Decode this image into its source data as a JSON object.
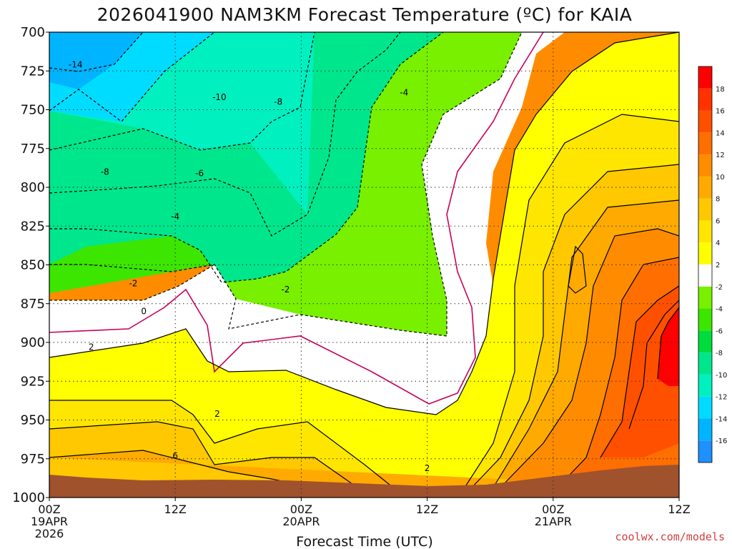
{
  "chart_data": {
    "type": "heatmap",
    "title": "2026041900 NAM3KM Forecast Temperature (ºC) for KAIA",
    "xlabel": "Forecast Time (UTC)",
    "ylabel": "",
    "credit": "coolwx.com/models",
    "y_axis": {
      "ticks": [
        "700",
        "725",
        "750",
        "775",
        "800",
        "825",
        "850",
        "875",
        "900",
        "925",
        "950",
        "975",
        "1000"
      ],
      "range": [
        700,
        1000
      ],
      "inverted": true
    },
    "x_axis": {
      "range_hours": [
        0,
        60
      ],
      "ticks": [
        {
          "hour": 0,
          "line1": "00Z",
          "line2": "19APR",
          "line3": "2026"
        },
        {
          "hour": 12,
          "line1": "12Z",
          "line2": "",
          "line3": ""
        },
        {
          "hour": 24,
          "line1": "00Z",
          "line2": "20APR",
          "line3": ""
        },
        {
          "hour": 36,
          "line1": "12Z",
          "line2": "",
          "line3": ""
        },
        {
          "hour": 48,
          "line1": "00Z",
          "line2": "21APR",
          "line3": ""
        },
        {
          "hour": 60,
          "line1": "12Z",
          "line2": "",
          "line3": ""
        }
      ]
    },
    "grid": true,
    "colorbar": {
      "placement": "right",
      "bins": [
        {
          "min": -18,
          "max": -16,
          "color": "#1e90ff"
        },
        {
          "min": -16,
          "max": -14,
          "color": "#00b4ff"
        },
        {
          "min": -14,
          "max": -12,
          "color": "#00dcff"
        },
        {
          "min": -12,
          "max": -10,
          "color": "#00f0c0"
        },
        {
          "min": -10,
          "max": -8,
          "color": "#00e68c"
        },
        {
          "min": -8,
          "max": -6,
          "color": "#00dc3c"
        },
        {
          "min": -6,
          "max": -4,
          "color": "#3ce600"
        },
        {
          "min": -4,
          "max": -2,
          "color": "#78f000"
        },
        {
          "min": -2,
          "max": 2,
          "color": "#ffffff"
        },
        {
          "min": 2,
          "max": 4,
          "color": "#ffff00"
        },
        {
          "min": 4,
          "max": 6,
          "color": "#ffe600"
        },
        {
          "min": 6,
          "max": 8,
          "color": "#ffc800"
        },
        {
          "min": 8,
          "max": 10,
          "color": "#ffaa00"
        },
        {
          "min": 10,
          "max": 12,
          "color": "#ff8c00"
        },
        {
          "min": 12,
          "max": 14,
          "color": "#ff6e00"
        },
        {
          "min": 14,
          "max": 16,
          "color": "#ff5000"
        },
        {
          "min": 16,
          "max": 18,
          "color": "#ff3200"
        },
        {
          "min": 18,
          "max": 20,
          "color": "#ff0000"
        }
      ],
      "tick_labels": [
        "-16",
        "-14",
        "-12",
        "-10",
        "-8",
        "-6",
        "-4",
        "-2",
        "2",
        "4",
        "6",
        "8",
        "10",
        "12",
        "14",
        "16",
        "18"
      ]
    },
    "terrain_color": "#a0522d",
    "zero_line_color": "#c8005a",
    "contour_labels": [
      {
        "text": "-14",
        "hour": 2.5,
        "p": 721
      },
      {
        "text": "-10",
        "hour": 16.2,
        "p": 742
      },
      {
        "text": "-8",
        "hour": 21.8,
        "p": 745
      },
      {
        "text": "-4",
        "hour": 33.8,
        "p": 739
      },
      {
        "text": "-8",
        "hour": 5.3,
        "p": 790
      },
      {
        "text": "-6",
        "hour": 14.3,
        "p": 791
      },
      {
        "text": "-4",
        "hour": 12.0,
        "p": 819
      },
      {
        "text": "-2",
        "hour": 8.0,
        "p": 862
      },
      {
        "text": "-2",
        "hour": 22.5,
        "p": 866
      },
      {
        "text": "0",
        "hour": 9.0,
        "p": 880
      },
      {
        "text": "2",
        "hour": 4.0,
        "p": 903
      },
      {
        "text": "2",
        "hour": 16.0,
        "p": 946
      },
      {
        "text": "2",
        "hour": 36.0,
        "p": 981
      },
      {
        "text": "6",
        "hour": 12.0,
        "p": 973
      }
    ]
  }
}
